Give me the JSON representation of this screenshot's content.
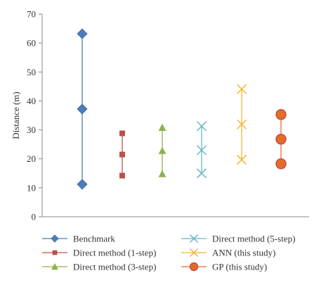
{
  "chart_data": {
    "type": "scatter",
    "title": "",
    "xlabel": "",
    "ylabel": "Distance (m)",
    "ylim": [
      0,
      70
    ],
    "yticks": [
      0,
      10,
      20,
      30,
      40,
      50,
      60,
      70
    ],
    "grid": false,
    "legend_position": "bottom",
    "series": [
      {
        "name": "Benchmark",
        "marker": "diamond",
        "color": "#4a7ebb",
        "values": [
          11.2,
          37.2,
          63.2
        ]
      },
      {
        "name": "Direct method (1-step)",
        "marker": "square",
        "color": "#c0504d",
        "values": [
          14.2,
          21.5,
          28.8
        ]
      },
      {
        "name": "Direct method (3-step)",
        "marker": "triangle",
        "color": "#8db24c",
        "values": [
          14.8,
          22.8,
          30.8
        ]
      },
      {
        "name": "Direct method (5-step)",
        "marker": "x",
        "color": "#66b7c6",
        "values": [
          15.0,
          23.0,
          31.3
        ]
      },
      {
        "name": "ANN (this study)",
        "marker": "x",
        "color": "#f2b632",
        "values": [
          19.7,
          31.9,
          44.1
        ]
      },
      {
        "name": "GP (this study)",
        "marker": "circle",
        "color": "#e46c25",
        "edge": "#c0504d",
        "values": [
          18.3,
          26.8,
          35.3
        ]
      }
    ]
  }
}
